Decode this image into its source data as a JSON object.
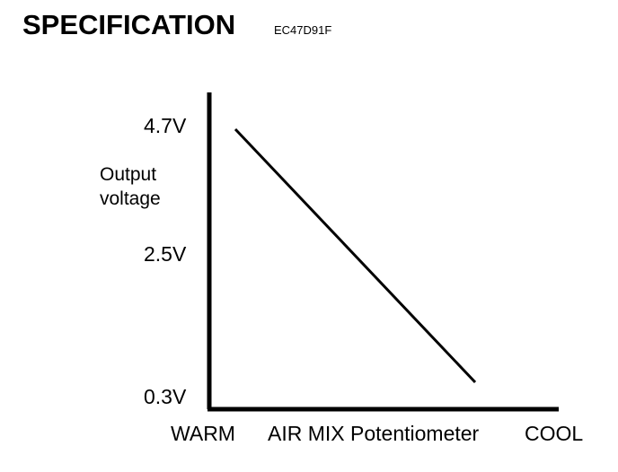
{
  "header": {
    "title": "SPECIFICATION",
    "code": "EC47D91F"
  },
  "chart_data": {
    "type": "line",
    "title": "",
    "ylabel": [
      "Output",
      "voltage"
    ],
    "xlabel": "AIR MIX Potentiometer",
    "x_tick_labels": [
      "WARM",
      "COOL"
    ],
    "y_ticks": [
      {
        "value": 4.7,
        "label": "4.7V"
      },
      {
        "value": 2.5,
        "label": "2.5V"
      },
      {
        "value": 0.3,
        "label": "0.3V"
      }
    ],
    "series": [
      {
        "points": [
          {
            "x": "WARM",
            "y": 4.7
          },
          {
            "x": "COOL",
            "y": 0.3
          }
        ]
      }
    ],
    "grid": false
  }
}
